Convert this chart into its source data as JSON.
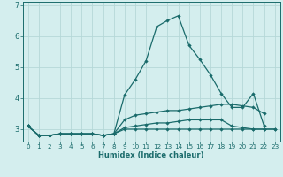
{
  "xlabel": "Humidex (Indice chaleur)",
  "x": [
    0,
    1,
    2,
    3,
    4,
    5,
    6,
    7,
    8,
    9,
    10,
    11,
    12,
    13,
    14,
    15,
    16,
    17,
    18,
    19,
    20,
    21,
    22,
    23
  ],
  "line1": [
    3.1,
    2.8,
    2.8,
    2.85,
    2.85,
    2.85,
    2.85,
    2.8,
    2.85,
    4.1,
    4.6,
    5.2,
    6.3,
    6.5,
    6.65,
    5.7,
    5.25,
    4.75,
    4.15,
    3.7,
    3.7,
    4.15,
    3.1,
    null
  ],
  "line2": [
    3.1,
    2.8,
    2.8,
    2.85,
    2.85,
    2.85,
    2.85,
    2.8,
    2.85,
    3.3,
    3.45,
    3.5,
    3.55,
    3.6,
    3.6,
    3.65,
    3.7,
    3.75,
    3.8,
    3.8,
    3.75,
    3.7,
    3.5,
    null
  ],
  "line3": [
    3.1,
    2.8,
    2.8,
    2.85,
    2.85,
    2.85,
    2.85,
    2.8,
    2.85,
    3.05,
    3.1,
    3.15,
    3.2,
    3.2,
    3.25,
    3.3,
    3.3,
    3.3,
    3.3,
    3.1,
    3.05,
    3.0,
    3.0,
    3.0
  ],
  "line4": [
    3.1,
    2.8,
    2.8,
    2.85,
    2.85,
    2.85,
    2.85,
    2.8,
    2.85,
    3.0,
    3.0,
    3.0,
    3.0,
    3.0,
    3.0,
    3.0,
    3.0,
    3.0,
    3.0,
    3.0,
    3.0,
    3.0,
    3.0,
    3.0
  ],
  "line_color": "#1a6b6b",
  "bg_color": "#d4eeee",
  "grid_color": "#b5d8d8",
  "ylim": [
    2.6,
    7.1
  ],
  "xlim": [
    -0.5,
    23.5
  ],
  "yticks": [
    3,
    4,
    5,
    6,
    7
  ],
  "xticks": [
    0,
    1,
    2,
    3,
    4,
    5,
    6,
    7,
    8,
    9,
    10,
    11,
    12,
    13,
    14,
    15,
    16,
    17,
    18,
    19,
    20,
    21,
    22,
    23
  ],
  "xlabel_fontsize": 6.0,
  "tick_fontsize": 5.2,
  "ytick_fontsize": 6.0,
  "marker_size": 2.2,
  "line_width": 0.9
}
